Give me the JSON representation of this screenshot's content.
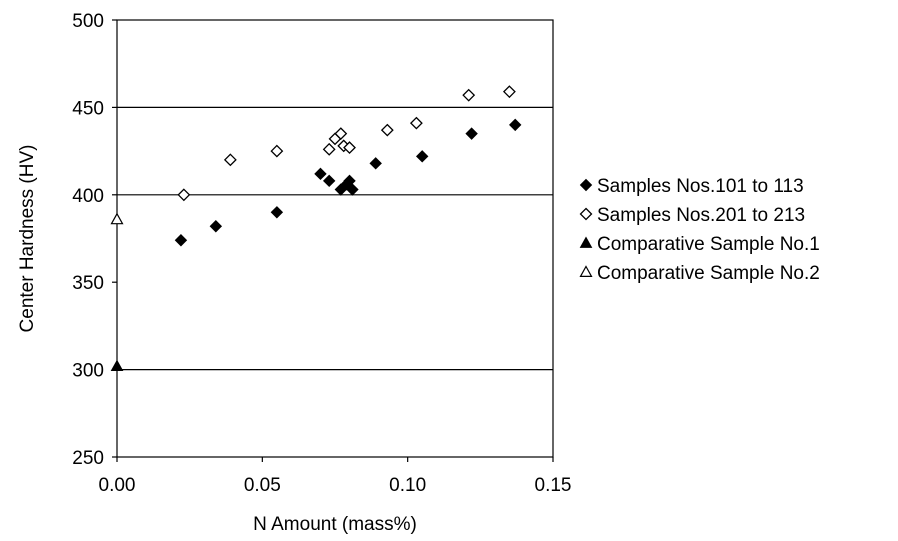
{
  "chart_data": {
    "type": "scatter",
    "title": "",
    "xlabel": "N Amount (mass%)",
    "ylabel": "Center Hardness (HV)",
    "xlim": [
      0,
      0.15
    ],
    "ylim": [
      250,
      500
    ],
    "xticks": [
      "0.00",
      "0.05",
      "0.10",
      "0.15"
    ],
    "yticks": [
      "250",
      "300",
      "350",
      "400",
      "450",
      "500"
    ],
    "x_tick_values": [
      0,
      0.05,
      0.1,
      0.15
    ],
    "y_tick_values": [
      250,
      300,
      350,
      400,
      450,
      500
    ],
    "gridlines_y": [
      300,
      400,
      450
    ],
    "legend_position": "right",
    "series": [
      {
        "name": "Samples Nos.101 to 113",
        "marker": "diamond-filled",
        "points": [
          [
            0.022,
            374
          ],
          [
            0.034,
            382
          ],
          [
            0.055,
            390
          ],
          [
            0.07,
            412
          ],
          [
            0.073,
            408
          ],
          [
            0.077,
            403
          ],
          [
            0.079,
            406
          ],
          [
            0.08,
            408
          ],
          [
            0.081,
            403
          ],
          [
            0.089,
            418
          ],
          [
            0.105,
            422
          ],
          [
            0.122,
            435
          ],
          [
            0.137,
            440
          ]
        ]
      },
      {
        "name": "Samples Nos.201 to 213",
        "marker": "diamond-open",
        "points": [
          [
            0.023,
            400
          ],
          [
            0.039,
            420
          ],
          [
            0.055,
            425
          ],
          [
            0.073,
            426
          ],
          [
            0.075,
            432
          ],
          [
            0.077,
            435
          ],
          [
            0.078,
            428
          ],
          [
            0.08,
            427
          ],
          [
            0.093,
            437
          ],
          [
            0.103,
            441
          ],
          [
            0.121,
            457
          ],
          [
            0.135,
            459
          ]
        ]
      },
      {
        "name": "Comparative Sample No.1",
        "marker": "triangle-filled",
        "points": [
          [
            0,
            302
          ]
        ]
      },
      {
        "name": "Comparative Sample No.2",
        "marker": "triangle-open",
        "points": [
          [
            0,
            386
          ]
        ]
      }
    ]
  }
}
